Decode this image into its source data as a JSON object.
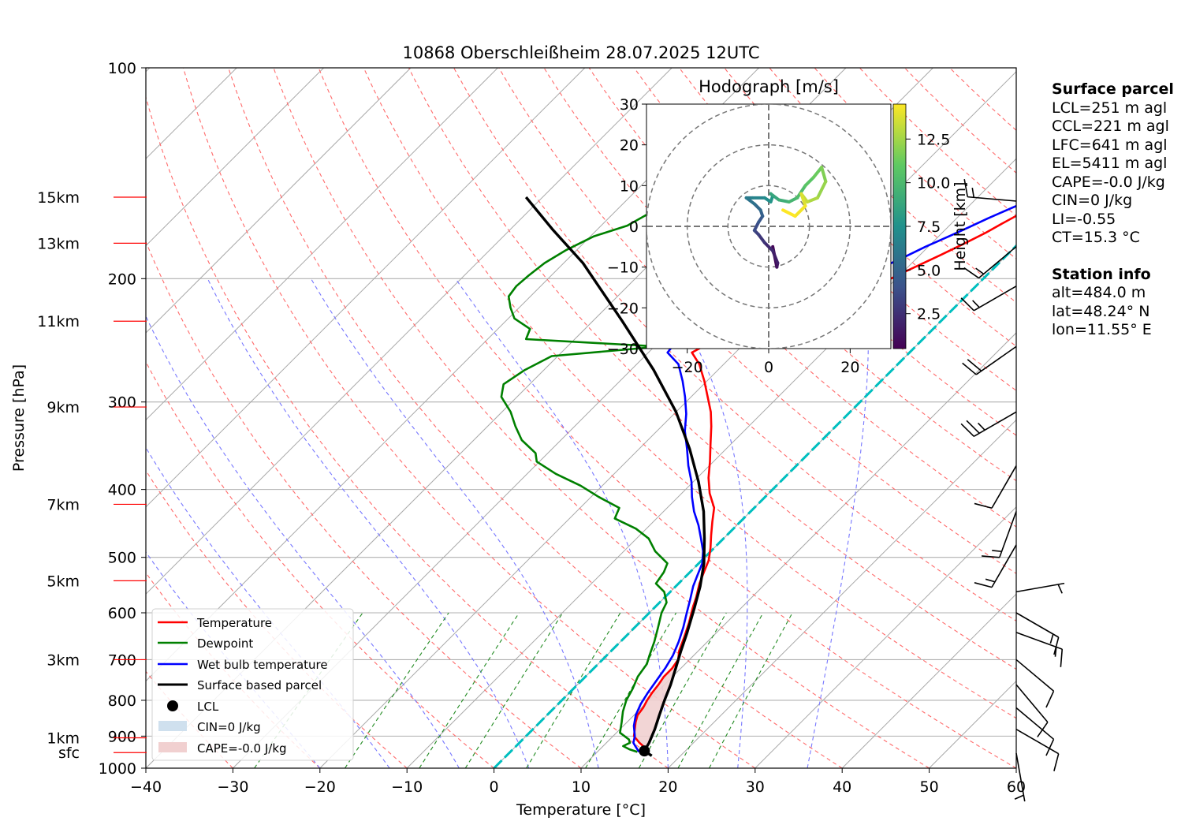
{
  "title": "10868 Oberschleißheim 28.07.2025 12UTC",
  "chart_data": {
    "type": "line",
    "subtype": "skew-T log-P diagram",
    "xlabel": "Temperature [°C]",
    "ylabel": "Pressure [hPa]",
    "xlim": [
      -40,
      60
    ],
    "ylim": [
      1000,
      100
    ],
    "y_scale": "log",
    "x_ticks": [
      -40,
      -30,
      -20,
      -10,
      0,
      10,
      20,
      30,
      40,
      50,
      60
    ],
    "y_ticks": [
      100,
      200,
      300,
      400,
      500,
      600,
      700,
      800,
      900,
      1000
    ],
    "grid": true,
    "height_labels": [
      {
        "label": "15km",
        "p": 153
      },
      {
        "label": "13km",
        "p": 178
      },
      {
        "label": "11km",
        "p": 230
      },
      {
        "label": "9km",
        "p": 305
      },
      {
        "label": "7km",
        "p": 420
      },
      {
        "label": "5km",
        "p": 540
      },
      {
        "label": "3km",
        "p": 700
      },
      {
        "label": "1km",
        "p": 905
      },
      {
        "label": "sfc",
        "p": 950
      }
    ],
    "series": [
      {
        "name": "Temperature",
        "color": "#ff0000",
        "points": [
          [
            15.6,
            948
          ],
          [
            14.6,
            930
          ],
          [
            13.8,
            920
          ],
          [
            12.4,
            900
          ],
          [
            11.7,
            880
          ],
          [
            11.0,
            860
          ],
          [
            10.4,
            840
          ],
          [
            10.2,
            820
          ],
          [
            9.8,
            800
          ],
          [
            9.5,
            780
          ],
          [
            9.3,
            760
          ],
          [
            9.0,
            740
          ],
          [
            9.0,
            720
          ],
          [
            8.7,
            700
          ],
          [
            7.8,
            680
          ],
          [
            6.8,
            650
          ],
          [
            5.7,
            620
          ],
          [
            4.4,
            590
          ],
          [
            3.6,
            570
          ],
          [
            2.4,
            545
          ],
          [
            1.6,
            525
          ],
          [
            0.8,
            505
          ],
          [
            -0.4,
            485
          ],
          [
            -1.8,
            465
          ],
          [
            -3.2,
            445
          ],
          [
            -4.6,
            425
          ],
          [
            -6.8,
            405
          ],
          [
            -8.7,
            385
          ],
          [
            -10.4,
            365
          ],
          [
            -12.3,
            345
          ],
          [
            -14.3,
            325
          ],
          [
            -16.0,
            310
          ],
          [
            -18.1,
            295
          ],
          [
            -20.3,
            280
          ],
          [
            -22.8,
            265
          ],
          [
            -25.0,
            255
          ],
          [
            -24.2,
            248
          ],
          [
            -23.1,
            242
          ],
          [
            -19.0,
            236
          ],
          [
            -17.0,
            230
          ],
          [
            -15.8,
            224
          ],
          [
            -13.8,
            215
          ],
          [
            -11.5,
            205
          ],
          [
            -10.1,
            197
          ],
          [
            -7.6,
            185
          ],
          [
            -6.2,
            178
          ],
          [
            -5.0,
            172
          ],
          [
            -4.2,
            167
          ],
          [
            -3.3,
            162
          ],
          [
            -2.3,
            157
          ],
          [
            -1.4,
            153
          ],
          [
            -1.0,
            149
          ]
        ]
      },
      {
        "name": "Dewpoint",
        "color": "#008000",
        "points": [
          [
            14.6,
            948
          ],
          [
            13.4,
            940
          ],
          [
            12.3,
            930
          ],
          [
            12.7,
            920
          ],
          [
            12.2,
            910
          ],
          [
            10.4,
            890
          ],
          [
            9.4,
            860
          ],
          [
            8.3,
            830
          ],
          [
            7.4,
            800
          ],
          [
            6.8,
            770
          ],
          [
            6.0,
            740
          ],
          [
            5.6,
            710
          ],
          [
            4.9,
            690
          ],
          [
            3.9,
            660
          ],
          [
            2.7,
            630
          ],
          [
            1.4,
            600
          ],
          [
            0.8,
            580
          ],
          [
            -0.7,
            560
          ],
          [
            -2.6,
            545
          ],
          [
            -3.0,
            525
          ],
          [
            -3.6,
            510
          ],
          [
            -6.4,
            490
          ],
          [
            -8.6,
            470
          ],
          [
            -11.2,
            455
          ],
          [
            -14.8,
            440
          ],
          [
            -15.5,
            425
          ],
          [
            -19.1,
            410
          ],
          [
            -22.5,
            395
          ],
          [
            -26.7,
            380
          ],
          [
            -30.3,
            365
          ],
          [
            -31.4,
            355
          ],
          [
            -34.5,
            340
          ],
          [
            -36.8,
            325
          ],
          [
            -39.0,
            310
          ],
          [
            -41.8,
            295
          ],
          [
            -43.0,
            283
          ],
          [
            -42.2,
            270
          ],
          [
            -40.7,
            258
          ],
          [
            -29.4,
            250
          ],
          [
            -45.6,
            244
          ],
          [
            -46.3,
            236
          ],
          [
            -49.3,
            228
          ],
          [
            -51.0,
            220
          ],
          [
            -52.5,
            212
          ],
          [
            -52.8,
            205
          ],
          [
            -52.6,
            198
          ],
          [
            -52.2,
            190
          ],
          [
            -51.2,
            182
          ],
          [
            -49.6,
            174
          ],
          [
            -47.0,
            168
          ],
          [
            -46.0,
            162
          ],
          [
            -42.8,
            155
          ],
          [
            -40.4,
            150
          ],
          [
            -38.8,
            146
          ],
          [
            -38.0,
            143
          ]
        ]
      },
      {
        "name": "Wet bulb temperature",
        "color": "#0000ff",
        "points": [
          [
            14.8,
            948
          ],
          [
            13.7,
            930
          ],
          [
            13.1,
            920
          ],
          [
            12.5,
            900
          ],
          [
            11.2,
            870
          ],
          [
            10.2,
            840
          ],
          [
            9.5,
            810
          ],
          [
            9.0,
            780
          ],
          [
            8.6,
            750
          ],
          [
            8.2,
            720
          ],
          [
            7.6,
            690
          ],
          [
            6.7,
            660
          ],
          [
            5.6,
            630
          ],
          [
            4.3,
            600
          ],
          [
            3.2,
            575
          ],
          [
            2.0,
            550
          ],
          [
            1.2,
            530
          ],
          [
            0.4,
            510
          ],
          [
            -0.9,
            490
          ],
          [
            -2.6,
            470
          ],
          [
            -4.4,
            450
          ],
          [
            -6.5,
            430
          ],
          [
            -8.4,
            410
          ],
          [
            -10.2,
            390
          ],
          [
            -12.4,
            370
          ],
          [
            -14.5,
            350
          ],
          [
            -16.8,
            330
          ],
          [
            -18.6,
            312
          ],
          [
            -20.7,
            295
          ],
          [
            -22.8,
            280
          ],
          [
            -25.2,
            265
          ],
          [
            -27.8,
            255
          ],
          [
            -28.0,
            248
          ],
          [
            -27.0,
            243
          ],
          [
            -23.5,
            238
          ],
          [
            -21.5,
            232
          ],
          [
            -20.5,
            226
          ],
          [
            -19.0,
            218
          ],
          [
            -17.0,
            210
          ],
          [
            -15.2,
            202
          ],
          [
            -13.2,
            194
          ],
          [
            -11.5,
            186
          ],
          [
            -10.3,
            180
          ],
          [
            -8.8,
            174
          ],
          [
            -7.6,
            169
          ],
          [
            -6.4,
            164
          ],
          [
            -5.0,
            159
          ],
          [
            -3.5,
            154
          ],
          [
            -2.2,
            150
          ],
          [
            -1.4,
            148
          ]
        ]
      },
      {
        "name": "Surface based parcel",
        "color": "#000000",
        "points": [
          [
            16.7,
            960
          ],
          [
            15.3,
            945
          ],
          [
            14.9,
            920
          ],
          [
            14.0,
            880
          ],
          [
            12.9,
            840
          ],
          [
            11.8,
            800
          ],
          [
            10.7,
            760
          ],
          [
            9.4,
            720
          ],
          [
            8.0,
            680
          ],
          [
            6.6,
            640
          ],
          [
            4.6,
            590
          ],
          [
            2.8,
            550
          ],
          [
            0.6,
            510
          ],
          [
            -2.2,
            470
          ],
          [
            -5.4,
            430
          ],
          [
            -9.4,
            390
          ],
          [
            -14.2,
            350
          ],
          [
            -20.0,
            310
          ],
          [
            -27.4,
            270
          ],
          [
            -36.6,
            230
          ],
          [
            -47.8,
            190
          ],
          [
            -55.2,
            170
          ],
          [
            -61.9,
            153
          ]
        ]
      }
    ],
    "lcl": {
      "name": "LCL",
      "t": 15.3,
      "p": 945
    },
    "shading": [
      {
        "name": "CIN=0 J/kg",
        "color": "#cfe0ee"
      },
      {
        "name": "CAPE=-0.0 J/kg",
        "color": "#f1d0d0"
      }
    ],
    "zero_isotherm_color": "#00bfbf",
    "hodograph": {
      "title": "Hodograph [m/s]",
      "xlim": [
        -30,
        30
      ],
      "ylim": [
        -30,
        30
      ],
      "x_ticks": [
        -20,
        0,
        20
      ],
      "y_ticks": [
        -30,
        -20,
        -10,
        0,
        10,
        20,
        30
      ],
      "rings": [
        10,
        20,
        30
      ],
      "colorbar_label": "Height [km]",
      "colorbar_ticks": [
        "2.5",
        "5.0",
        "7.5",
        "10.0",
        "12.5"
      ],
      "colorbar_range": [
        0.5,
        14.5
      ],
      "points": [
        [
          1.0,
          -5.0,
          0.5
        ],
        [
          2.0,
          -10.0,
          1.0
        ],
        [
          2.2,
          -9.0,
          1.5
        ],
        [
          1.0,
          -6.0,
          2.0
        ],
        [
          -1.0,
          -4.0,
          2.5
        ],
        [
          -2.5,
          -2.0,
          3.0
        ],
        [
          -3.5,
          -1.0,
          3.5
        ],
        [
          -2.5,
          1.0,
          4.0
        ],
        [
          -1.5,
          2.5,
          4.5
        ],
        [
          -2.0,
          4.0,
          5.0
        ],
        [
          -3.5,
          5.5,
          5.5
        ],
        [
          -5.5,
          7.0,
          6.0
        ],
        [
          -4.0,
          7.0,
          6.5
        ],
        [
          -1.0,
          7.0,
          7.0
        ],
        [
          0.5,
          6.0,
          7.5
        ],
        [
          1.0,
          7.5,
          8.0
        ],
        [
          0.5,
          8.0,
          8.5
        ],
        [
          2.5,
          6.5,
          9.0
        ],
        [
          5.0,
          6.0,
          9.5
        ],
        [
          7.0,
          7.0,
          10.0
        ],
        [
          9.0,
          10.0,
          10.5
        ],
        [
          11.0,
          12.0,
          11.0
        ],
        [
          13.0,
          14.5,
          11.5
        ],
        [
          14.0,
          11.0,
          12.0
        ],
        [
          12.0,
          7.0,
          12.5
        ],
        [
          9.5,
          6.0,
          13.0
        ],
        [
          8.0,
          8.0,
          13.5
        ],
        [
          9.0,
          5.0,
          14.0
        ],
        [
          6.5,
          2.5,
          14.5
        ],
        [
          3.5,
          4.0,
          14.5
        ]
      ]
    },
    "wind_barbs": [
      {
        "p": 952,
        "speed_kt": 5,
        "dir_deg": 170
      },
      {
        "p": 880,
        "speed_kt": 10,
        "dir_deg": 120
      },
      {
        "p": 820,
        "speed_kt": 10,
        "dir_deg": 130
      },
      {
        "p": 760,
        "speed_kt": 10,
        "dir_deg": 140
      },
      {
        "p": 700,
        "speed_kt": 10,
        "dir_deg": 130
      },
      {
        "p": 640,
        "speed_kt": 15,
        "dir_deg": 110
      },
      {
        "p": 600,
        "speed_kt": 15,
        "dir_deg": 120
      },
      {
        "p": 560,
        "speed_kt": 5,
        "dir_deg": 80
      },
      {
        "p": 480,
        "speed_kt": 15,
        "dir_deg": 210
      },
      {
        "p": 430,
        "speed_kt": 15,
        "dir_deg": 200
      },
      {
        "p": 370,
        "speed_kt": 10,
        "dir_deg": 210
      },
      {
        "p": 310,
        "speed_kt": 25,
        "dir_deg": 240
      },
      {
        "p": 250,
        "speed_kt": 20,
        "dir_deg": 235
      },
      {
        "p": 205,
        "speed_kt": 15,
        "dir_deg": 240
      },
      {
        "p": 180,
        "speed_kt": 15,
        "dir_deg": 230
      },
      {
        "p": 155,
        "speed_kt": 15,
        "dir_deg": 275
      }
    ],
    "legend": {
      "placement": "bottom-left",
      "entries": [
        "Temperature",
        "Dewpoint",
        "Wet bulb temperature",
        "Surface based parcel",
        "LCL",
        "CIN=0 J/kg",
        "CAPE=-0.0 J/kg"
      ]
    }
  },
  "sidebar": {
    "surface_title": "Surface parcel",
    "surface_lines": [
      "LCL=251 m agl",
      "CCL=221 m agl",
      "LFC=641 m agl",
      "EL=5411 m agl",
      "CAPE=-0.0 J/kg",
      "CIN=0 J/kg",
      "LI=-0.55",
      "CT=15.3 °C"
    ],
    "station_title": "Station info",
    "station_lines": [
      "alt=484.0 m",
      "lat=48.24° N",
      "lon=11.55° E"
    ]
  }
}
